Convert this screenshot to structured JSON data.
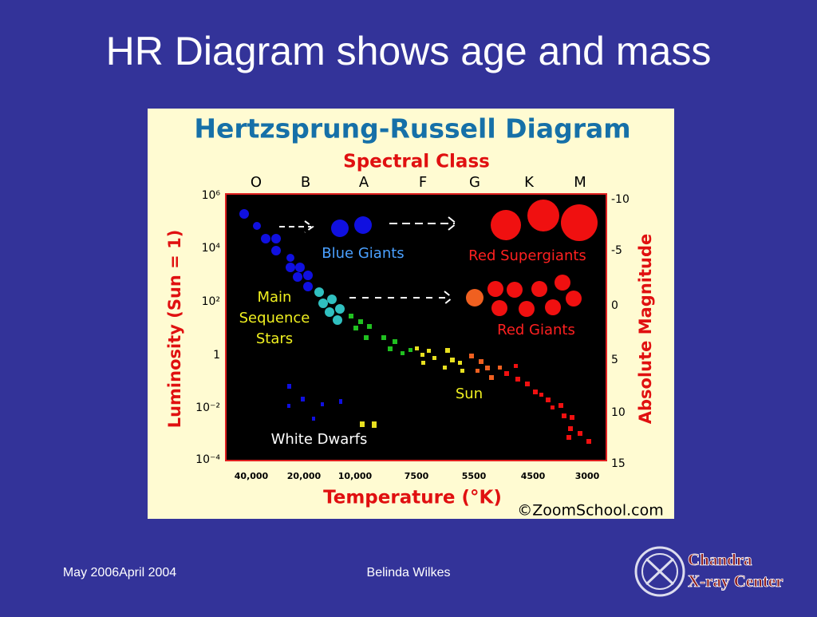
{
  "slide": {
    "title": "HR Diagram shows age and mass",
    "footer": {
      "left": "May 2006April 2004",
      "center": "Belinda Wilkes",
      "logo": [
        "Chandra",
        "X-ray Center"
      ]
    }
  },
  "figure": {
    "title": "Hertzsprung-Russell Diagram",
    "top_axis_title": "Spectral Class",
    "spectral_classes": [
      "O",
      "B",
      "A",
      "F",
      "G",
      "K",
      "M"
    ],
    "left_axis_title": "Luminosity (Sun = 1)",
    "left_ticks": [
      "10⁶",
      "10⁴",
      "10²",
      "1",
      "10⁻²",
      "10⁻⁴"
    ],
    "right_axis_title": "Absolute Magnitude",
    "right_ticks": [
      "-10",
      "-5",
      "0",
      "5",
      "10",
      "15"
    ],
    "bottom_ticks": [
      "40,000",
      "20,000",
      "10,000",
      "7500",
      "5500",
      "4500",
      "3000"
    ],
    "bottom_axis_title": "Temperature (°K)",
    "credit": "©ZoomSchool.com",
    "labels": {
      "blue_giants": "Blue Giants",
      "red_supergiants": "Red Supergiants",
      "main_sequence": [
        "Main",
        "Sequence",
        "Stars"
      ],
      "red_giants": "Red Giants",
      "sun": "Sun",
      "white_dwarfs": "White Dwarfs"
    }
  }
}
